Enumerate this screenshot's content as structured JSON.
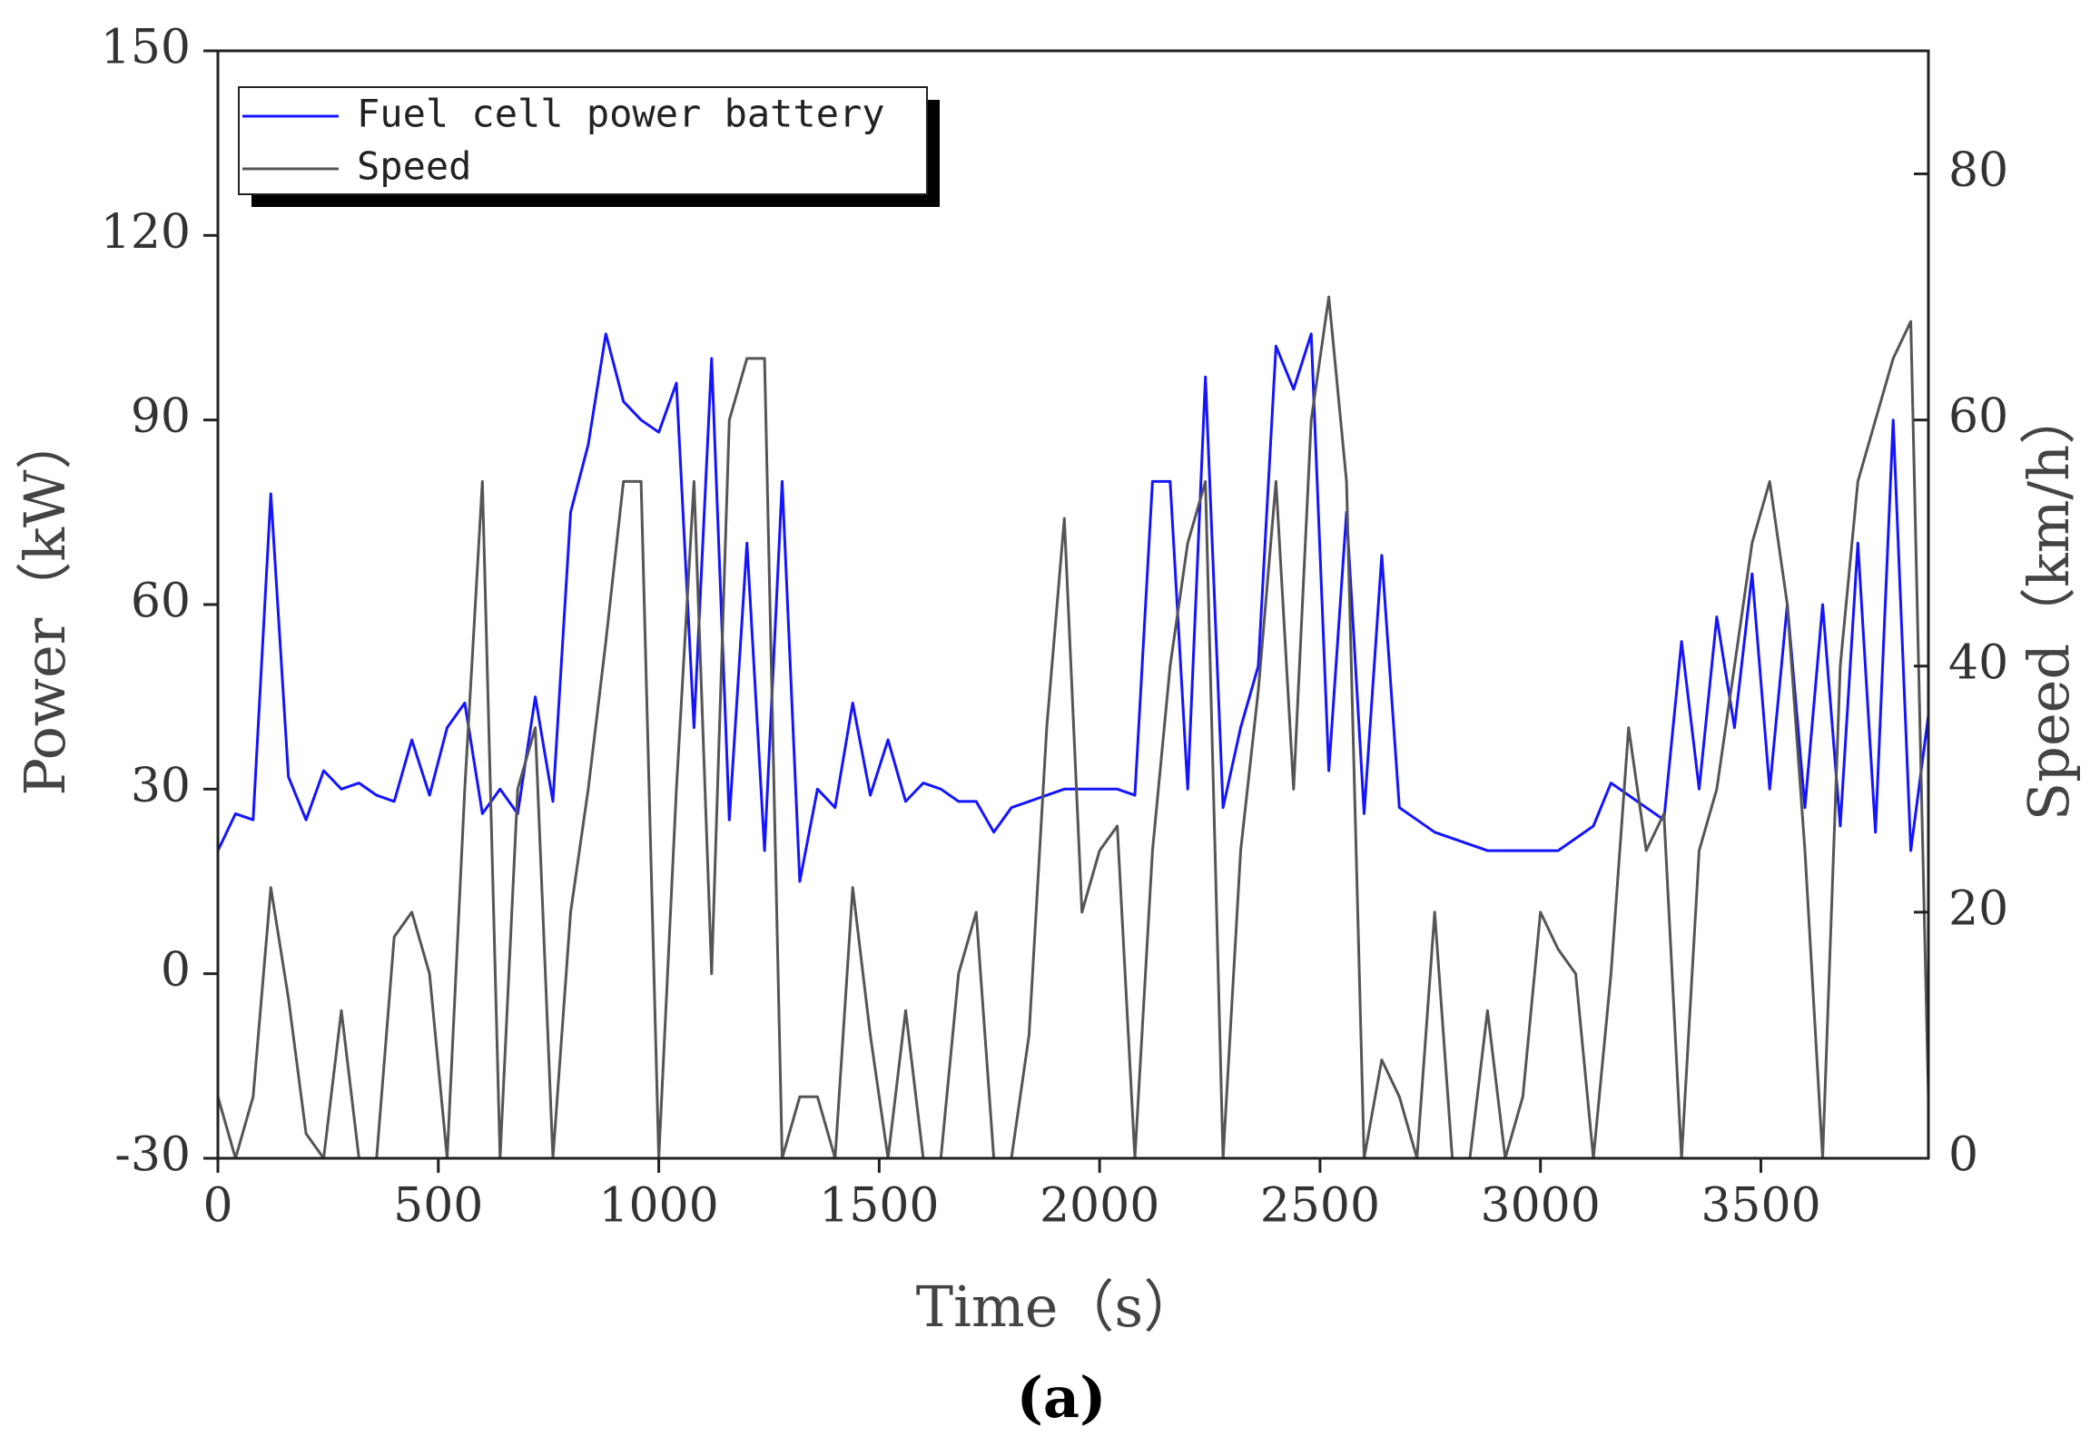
{
  "chart_data": {
    "type": "line",
    "xlabel": "Time（s）",
    "ylabel": "Power（kW）",
    "y2label": "Speed（km/h）",
    "caption": "(a)",
    "x": [
      0,
      40,
      80,
      120,
      160,
      200,
      240,
      280,
      320,
      360,
      400,
      440,
      480,
      520,
      560,
      600,
      640,
      680,
      720,
      760,
      800,
      840,
      880,
      920,
      960,
      1000,
      1040,
      1080,
      1120,
      1160,
      1200,
      1240,
      1280,
      1320,
      1360,
      1400,
      1440,
      1480,
      1520,
      1560,
      1600,
      1640,
      1680,
      1720,
      1760,
      1800,
      1840,
      1880,
      1920,
      1960,
      2000,
      2040,
      2080,
      2120,
      2160,
      2200,
      2240,
      2280,
      2320,
      2360,
      2400,
      2440,
      2480,
      2520,
      2560,
      2600,
      2640,
      2680,
      2720,
      2760,
      2800,
      2840,
      2880,
      2920,
      2960,
      3000,
      3040,
      3080,
      3120,
      3160,
      3200,
      3240,
      3280,
      3320,
      3360,
      3400,
      3440,
      3480,
      3520,
      3560,
      3600,
      3640,
      3680,
      3720,
      3760,
      3800,
      3840,
      3880
    ],
    "series": [
      {
        "name": "Fuel cell power battery",
        "color": "#1414ff",
        "values": [
          20,
          26,
          25,
          78,
          32,
          25,
          33,
          30,
          31,
          29,
          28,
          38,
          29,
          40,
          44,
          26,
          30,
          26,
          45,
          28,
          75,
          86,
          104,
          93,
          90,
          88,
          96,
          40,
          100,
          25,
          70,
          20,
          80,
          15,
          30,
          27,
          44,
          29,
          38,
          28,
          31,
          30,
          28,
          28,
          23,
          27,
          28,
          29,
          30,
          30,
          30,
          30,
          29,
          80,
          80,
          30,
          97,
          27,
          40,
          50,
          102,
          95,
          104,
          33,
          75,
          26,
          68,
          27,
          25,
          23,
          22,
          21,
          20,
          20,
          20,
          20,
          20,
          22,
          24,
          31,
          29,
          27,
          25,
          54,
          30,
          58,
          40,
          65,
          30,
          60,
          27,
          60,
          24,
          70,
          23,
          90,
          20,
          42
        ]
      },
      {
        "name": "Speed",
        "color": "#555555",
        "axis": "y2",
        "values": [
          5,
          0,
          5,
          22,
          13,
          2,
          0,
          12,
          0,
          0,
          18,
          20,
          15,
          0,
          30,
          55,
          0,
          30,
          35,
          0,
          20,
          30,
          42,
          55,
          55,
          0,
          30,
          55,
          15,
          60,
          65,
          65,
          0,
          5,
          5,
          0,
          22,
          10,
          0,
          12,
          0,
          0,
          15,
          20,
          0,
          0,
          10,
          35,
          52,
          20,
          25,
          27,
          0,
          25,
          40,
          50,
          55,
          0,
          25,
          38,
          55,
          30,
          60,
          70,
          55,
          0,
          8,
          5,
          0,
          20,
          0,
          0,
          12,
          0,
          5,
          20,
          17,
          15,
          0,
          15,
          35,
          25,
          28,
          0,
          25,
          30,
          40,
          50,
          55,
          45,
          25,
          0,
          40,
          55,
          60,
          65,
          68,
          5
        ]
      }
    ],
    "xlim": [
      0,
      3880
    ],
    "xticks": [
      0,
      500,
      1000,
      1500,
      2000,
      2500,
      3000,
      3500
    ],
    "ylim": [
      -30,
      150
    ],
    "yticks": [
      -30,
      0,
      30,
      60,
      90,
      120,
      150
    ],
    "y2lim": [
      0,
      90
    ],
    "y2ticks": [
      0,
      20,
      40,
      60,
      80
    ],
    "legend": "upper-left"
  }
}
